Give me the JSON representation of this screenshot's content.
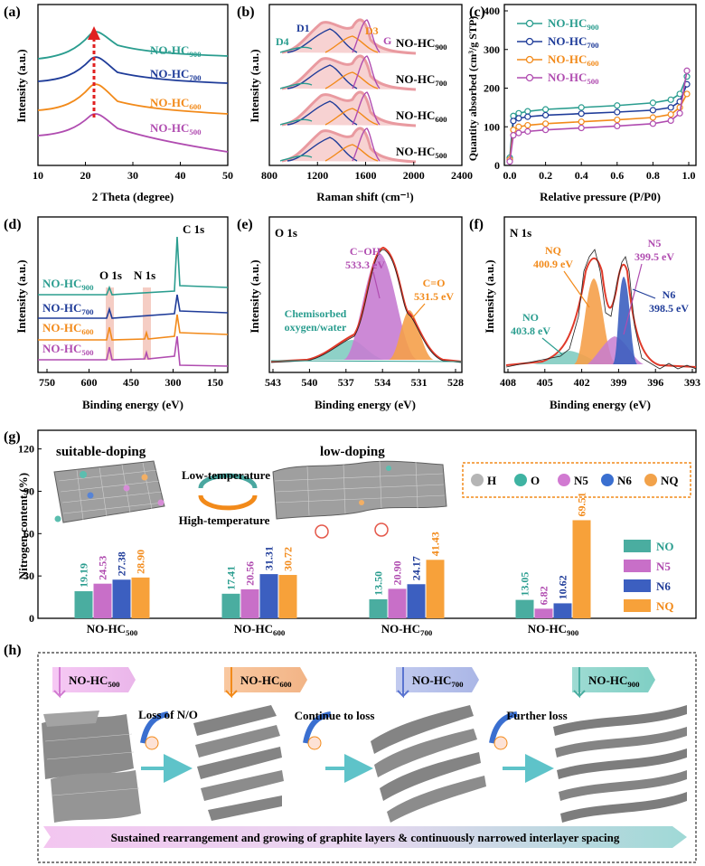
{
  "panels": {
    "a": {
      "tag": "(a)",
      "ylabel": "Intensity (a.u.)",
      "xlabel": "2 Theta (degree)",
      "xticks": [
        "10",
        "20",
        "30",
        "40",
        "50"
      ],
      "legend": [
        {
          "base": "NO-HC",
          "sub": "900",
          "color": "#2a9d8f"
        },
        {
          "base": "NO-HC",
          "sub": "700",
          "color": "#1f3c99"
        },
        {
          "base": "NO-HC",
          "sub": "600",
          "color": "#f28a1a"
        },
        {
          "base": "NO-HC",
          "sub": "500",
          "color": "#b04cb0"
        }
      ]
    },
    "b": {
      "tag": "(b)",
      "xlabel": "Raman shift (cm⁻¹)",
      "xticks": [
        "800",
        "1200",
        "1600",
        "2000",
        "2400"
      ],
      "peaks": [
        "D1",
        "D3",
        "D4",
        "G"
      ],
      "legend": [
        {
          "base": "NO-HC",
          "sub": "900"
        },
        {
          "base": "NO-HC",
          "sub": "700"
        },
        {
          "base": "NO-HC",
          "sub": "600"
        },
        {
          "base": "NO-HC",
          "sub": "500"
        }
      ]
    },
    "c": {
      "tag": "(c)",
      "ylabel": "Quantity absorbed (cm³/g STP)",
      "xlabel": "Relative pressure (P/P0)",
      "xticks": [
        "0.0",
        "0.2",
        "0.4",
        "0.6",
        "0.8",
        "1.0"
      ],
      "yticks": [
        "0",
        "100",
        "200",
        "300",
        "400"
      ],
      "legend": [
        {
          "base": "NO-HC",
          "sub": "900",
          "color": "#2a9d8f"
        },
        {
          "base": "NO-HC",
          "sub": "700",
          "color": "#1f3c99"
        },
        {
          "base": "NO-HC",
          "sub": "600",
          "color": "#f28a1a"
        },
        {
          "base": "NO-HC",
          "sub": "500",
          "color": "#b04cb0"
        }
      ]
    },
    "d": {
      "tag": "(d)",
      "ylabel": "Intensity (a.u.)",
      "xlabel": "Binding energy (eV)",
      "xticks": [
        "750",
        "600",
        "450",
        "300",
        "150"
      ],
      "peak_labels": [
        "O 1s",
        "N 1s",
        "C 1s"
      ],
      "legend": [
        {
          "base": "NO-HC",
          "sub": "900",
          "color": "#2a9d8f"
        },
        {
          "base": "NO-HC",
          "sub": "700",
          "color": "#1f3c99"
        },
        {
          "base": "NO-HC",
          "sub": "600",
          "color": "#f28a1a"
        },
        {
          "base": "NO-HC",
          "sub": "500",
          "color": "#b04cb0"
        }
      ]
    },
    "e": {
      "tag": "(e)",
      "title": "O 1s",
      "ylabel": "Intensity (a.u.)",
      "xlabel": "Binding energy (eV)",
      "xticks": [
        "543",
        "540",
        "537",
        "534",
        "531",
        "528"
      ],
      "annotations": [
        {
          "line1": "C−OH",
          "line2": "533.3 eV"
        },
        {
          "line1": "C=O",
          "line2": "531.5 eV"
        },
        {
          "line1": "Chemisorbed",
          "line2": "oxygen/water"
        }
      ]
    },
    "f": {
      "tag": "(f)",
      "title": "N 1s",
      "ylabel": "Intensity (a.u.)",
      "xlabel": "Binding energy (eV)",
      "xticks": [
        "408",
        "405",
        "402",
        "399",
        "396",
        "393"
      ],
      "annotations": [
        {
          "line1": "NQ",
          "line2": "400.9 eV"
        },
        {
          "line1": "N5",
          "line2": "399.5 eV"
        },
        {
          "line1": "NO",
          "line2": "403.8 eV"
        },
        {
          "line1": "N6",
          "line2": "398.5 eV"
        }
      ]
    },
    "g": {
      "tag": "(g)",
      "ylabel": "Nitrogen content (%)",
      "yticks": [
        "0",
        "30",
        "60",
        "90",
        "120"
      ],
      "scheme": {
        "left": "suitable-doping",
        "right": "low-doping",
        "arrow_top": "Low-temperature",
        "arrow_bottom": "High-temperature"
      },
      "atom_legend": [
        {
          "label": "H",
          "color": "#b5b5b5"
        },
        {
          "label": "O",
          "color": "#3fb3a2"
        },
        {
          "label": "N5",
          "color": "#d17ad1"
        },
        {
          "label": "N6",
          "color": "#3a6fd0"
        },
        {
          "label": "NQ",
          "color": "#f2a24a"
        }
      ],
      "bar_legend": [
        {
          "label": "NO",
          "color": "#4aada0"
        },
        {
          "label": "N5",
          "color": "#c86fc8"
        },
        {
          "label": "N6",
          "color": "#3c5fc0"
        },
        {
          "label": "NQ",
          "color": "#f7a13a"
        }
      ]
    },
    "h": {
      "tag": "(h)",
      "samples": [
        {
          "base": "NO-HC",
          "sub": "500"
        },
        {
          "base": "NO-HC",
          "sub": "600"
        },
        {
          "base": "NO-HC",
          "sub": "700"
        },
        {
          "base": "NO-HC",
          "sub": "900"
        }
      ],
      "steps": [
        "Loss of N/O",
        "Continue to loss",
        "Further loss"
      ],
      "banner": "Sustained rearrangement and growing of graphite layers & continuously narrowed interlayer spacing"
    }
  },
  "chart_data": [
    {
      "type": "bar",
      "panel": "g",
      "title": "",
      "ylabel": "Nitrogen content (%)",
      "ylim": [
        0,
        130
      ],
      "categories": [
        "NO-HC500",
        "NO-HC600",
        "NO-HC700",
        "NO-HC900"
      ],
      "series": [
        {
          "name": "NO",
          "values": [
            19.19,
            17.41,
            13.5,
            13.05
          ]
        },
        {
          "name": "N5",
          "values": [
            24.53,
            20.56,
            20.9,
            6.82
          ]
        },
        {
          "name": "N6",
          "values": [
            27.38,
            31.31,
            24.17,
            10.62
          ]
        },
        {
          "name": "NQ",
          "values": [
            28.9,
            30.72,
            41.43,
            69.51
          ]
        }
      ],
      "labels": [
        [
          "19.19",
          "24.53",
          "27.38",
          "28.90"
        ],
        [
          "17.41",
          "20.56",
          "31.31",
          "30.72"
        ],
        [
          "13.50",
          "20.90",
          "24.17",
          "41.43"
        ],
        [
          "13.05",
          "6.82",
          "10.62",
          "69.51"
        ]
      ]
    },
    {
      "type": "line",
      "panel": "c",
      "xlabel": "Relative pressure (P/P0)",
      "ylabel": "Quantity absorbed (cm³/g STP)",
      "xlim": [
        0,
        1
      ],
      "ylim": [
        0,
        400
      ],
      "x": [
        0.0,
        0.02,
        0.05,
        0.1,
        0.2,
        0.4,
        0.6,
        0.8,
        0.9,
        0.95,
        0.99
      ],
      "series": [
        {
          "name": "NO-HC900",
          "values": [
            20,
            128,
            135,
            140,
            145,
            150,
            155,
            162,
            170,
            185,
            230
          ]
        },
        {
          "name": "NO-HC700",
          "values": [
            15,
            115,
            122,
            126,
            130,
            134,
            138,
            143,
            150,
            165,
            210
          ]
        },
        {
          "name": "NO-HC600",
          "values": [
            15,
            92,
            100,
            104,
            108,
            113,
            118,
            124,
            132,
            150,
            185
          ]
        },
        {
          "name": "NO-HC500",
          "values": [
            10,
            78,
            84,
            88,
            92,
            97,
            102,
            108,
            116,
            135,
            245
          ]
        }
      ]
    }
  ]
}
